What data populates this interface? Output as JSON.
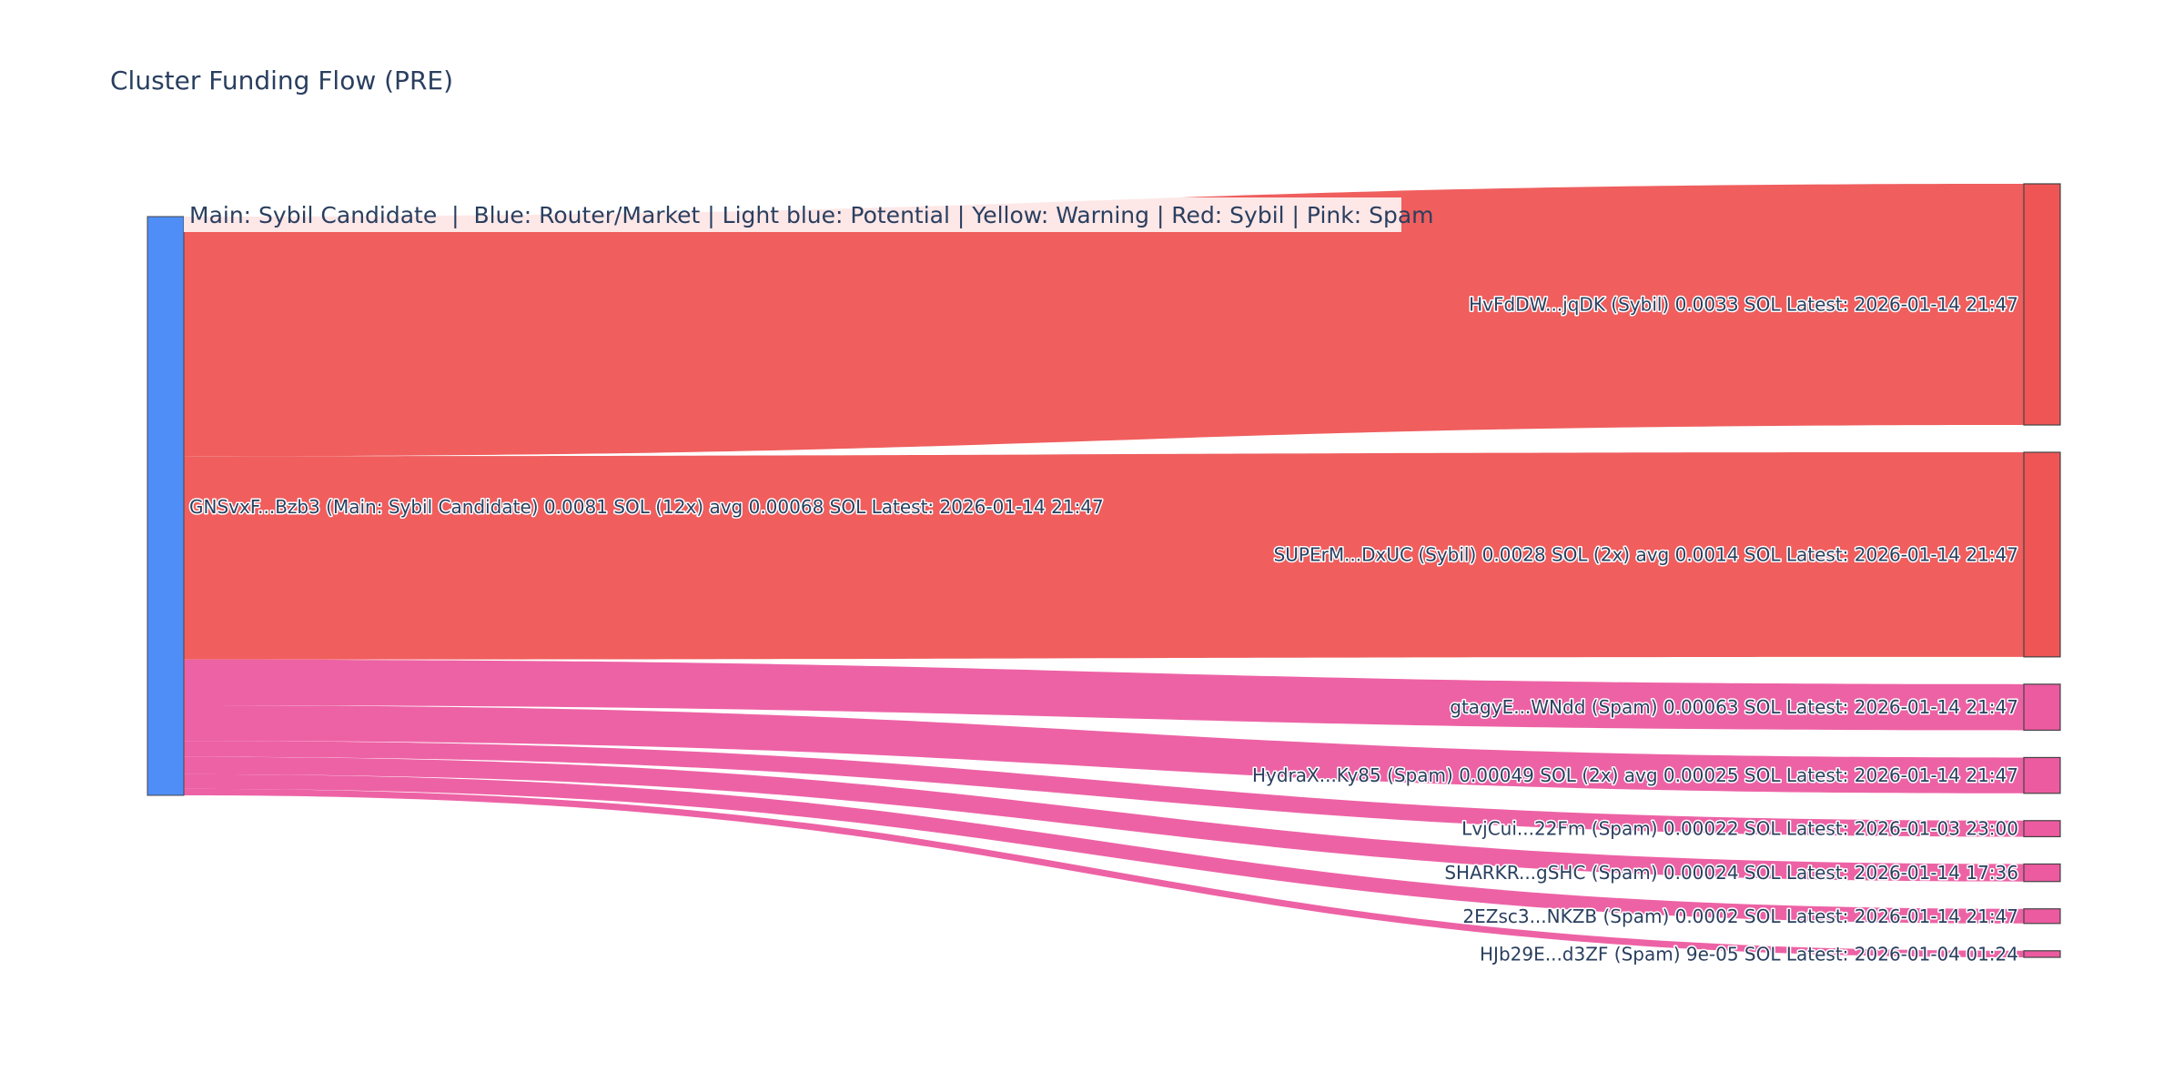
{
  "title": "Cluster Funding Flow (PRE)",
  "legend_text": "Main: Sybil Candidate  |  Blue: Router/Market | Light blue: Potential | Yellow: Warning | Red: Sybil | Pink: Spam",
  "colors": {
    "main": "#4f8ef7",
    "sybil": "#ef5555",
    "spam": "#ec5aa0",
    "legend_bg": "#ffffff",
    "node_stroke": "#444444"
  },
  "chart_data": {
    "type": "sankey",
    "source": {
      "id": "GNSvxF...Bzb3",
      "category": "Main: Sybil Candidate",
      "label": "GNSvxF...Bzb3 (Main: Sybil Candidate) 0.0081 SOL (12x) avg 0.00068 SOL Latest: 2026-01-14 21:47",
      "total_sol": 0.0081,
      "tx_count": 12
    },
    "targets": [
      {
        "id": "HvFdDW...jqDK",
        "category": "Sybil",
        "value": 0.0033,
        "label": "HvFdDW...jqDK (Sybil) 0.0033 SOL Latest: 2026-01-14 21:47"
      },
      {
        "id": "SUPErM...DxUC",
        "category": "Sybil",
        "value": 0.0028,
        "label": "SUPErM...DxUC (Sybil) 0.0028 SOL (2x) avg 0.0014 SOL Latest: 2026-01-14 21:47"
      },
      {
        "id": "gtagyE...WNdd",
        "category": "Spam",
        "value": 0.00063,
        "label": "gtagyE...WNdd (Spam) 0.00063 SOL Latest: 2026-01-14 21:47"
      },
      {
        "id": "HydraX...Ky85",
        "category": "Spam",
        "value": 0.00049,
        "label": "HydraX...Ky85 (Spam) 0.00049 SOL (2x) avg 0.00025 SOL Latest: 2026-01-14 21:47"
      },
      {
        "id": "LvjCui...22Fm",
        "category": "Spam",
        "value": 0.00022,
        "label": "LvjCui...22Fm (Spam) 0.00022 SOL Latest: 2026-01-03 23:00"
      },
      {
        "id": "SHARKR...gSHC",
        "category": "Spam",
        "value": 0.00024,
        "label": "SHARKR...gSHC (Spam) 0.00024 SOL Latest: 2026-01-14 17:36"
      },
      {
        "id": "2EZsc3...NKZB",
        "category": "Spam",
        "value": 0.0002,
        "label": "2EZsc3...NKZB (Spam) 0.0002 SOL Latest: 2026-01-14 21:47"
      },
      {
        "id": "HJb29E...d3ZF",
        "category": "Spam",
        "value": 9e-05,
        "label": "HJb29E...d3ZF (Spam) 9e-05 SOL Latest: 2026-01-04 01:24"
      }
    ]
  }
}
